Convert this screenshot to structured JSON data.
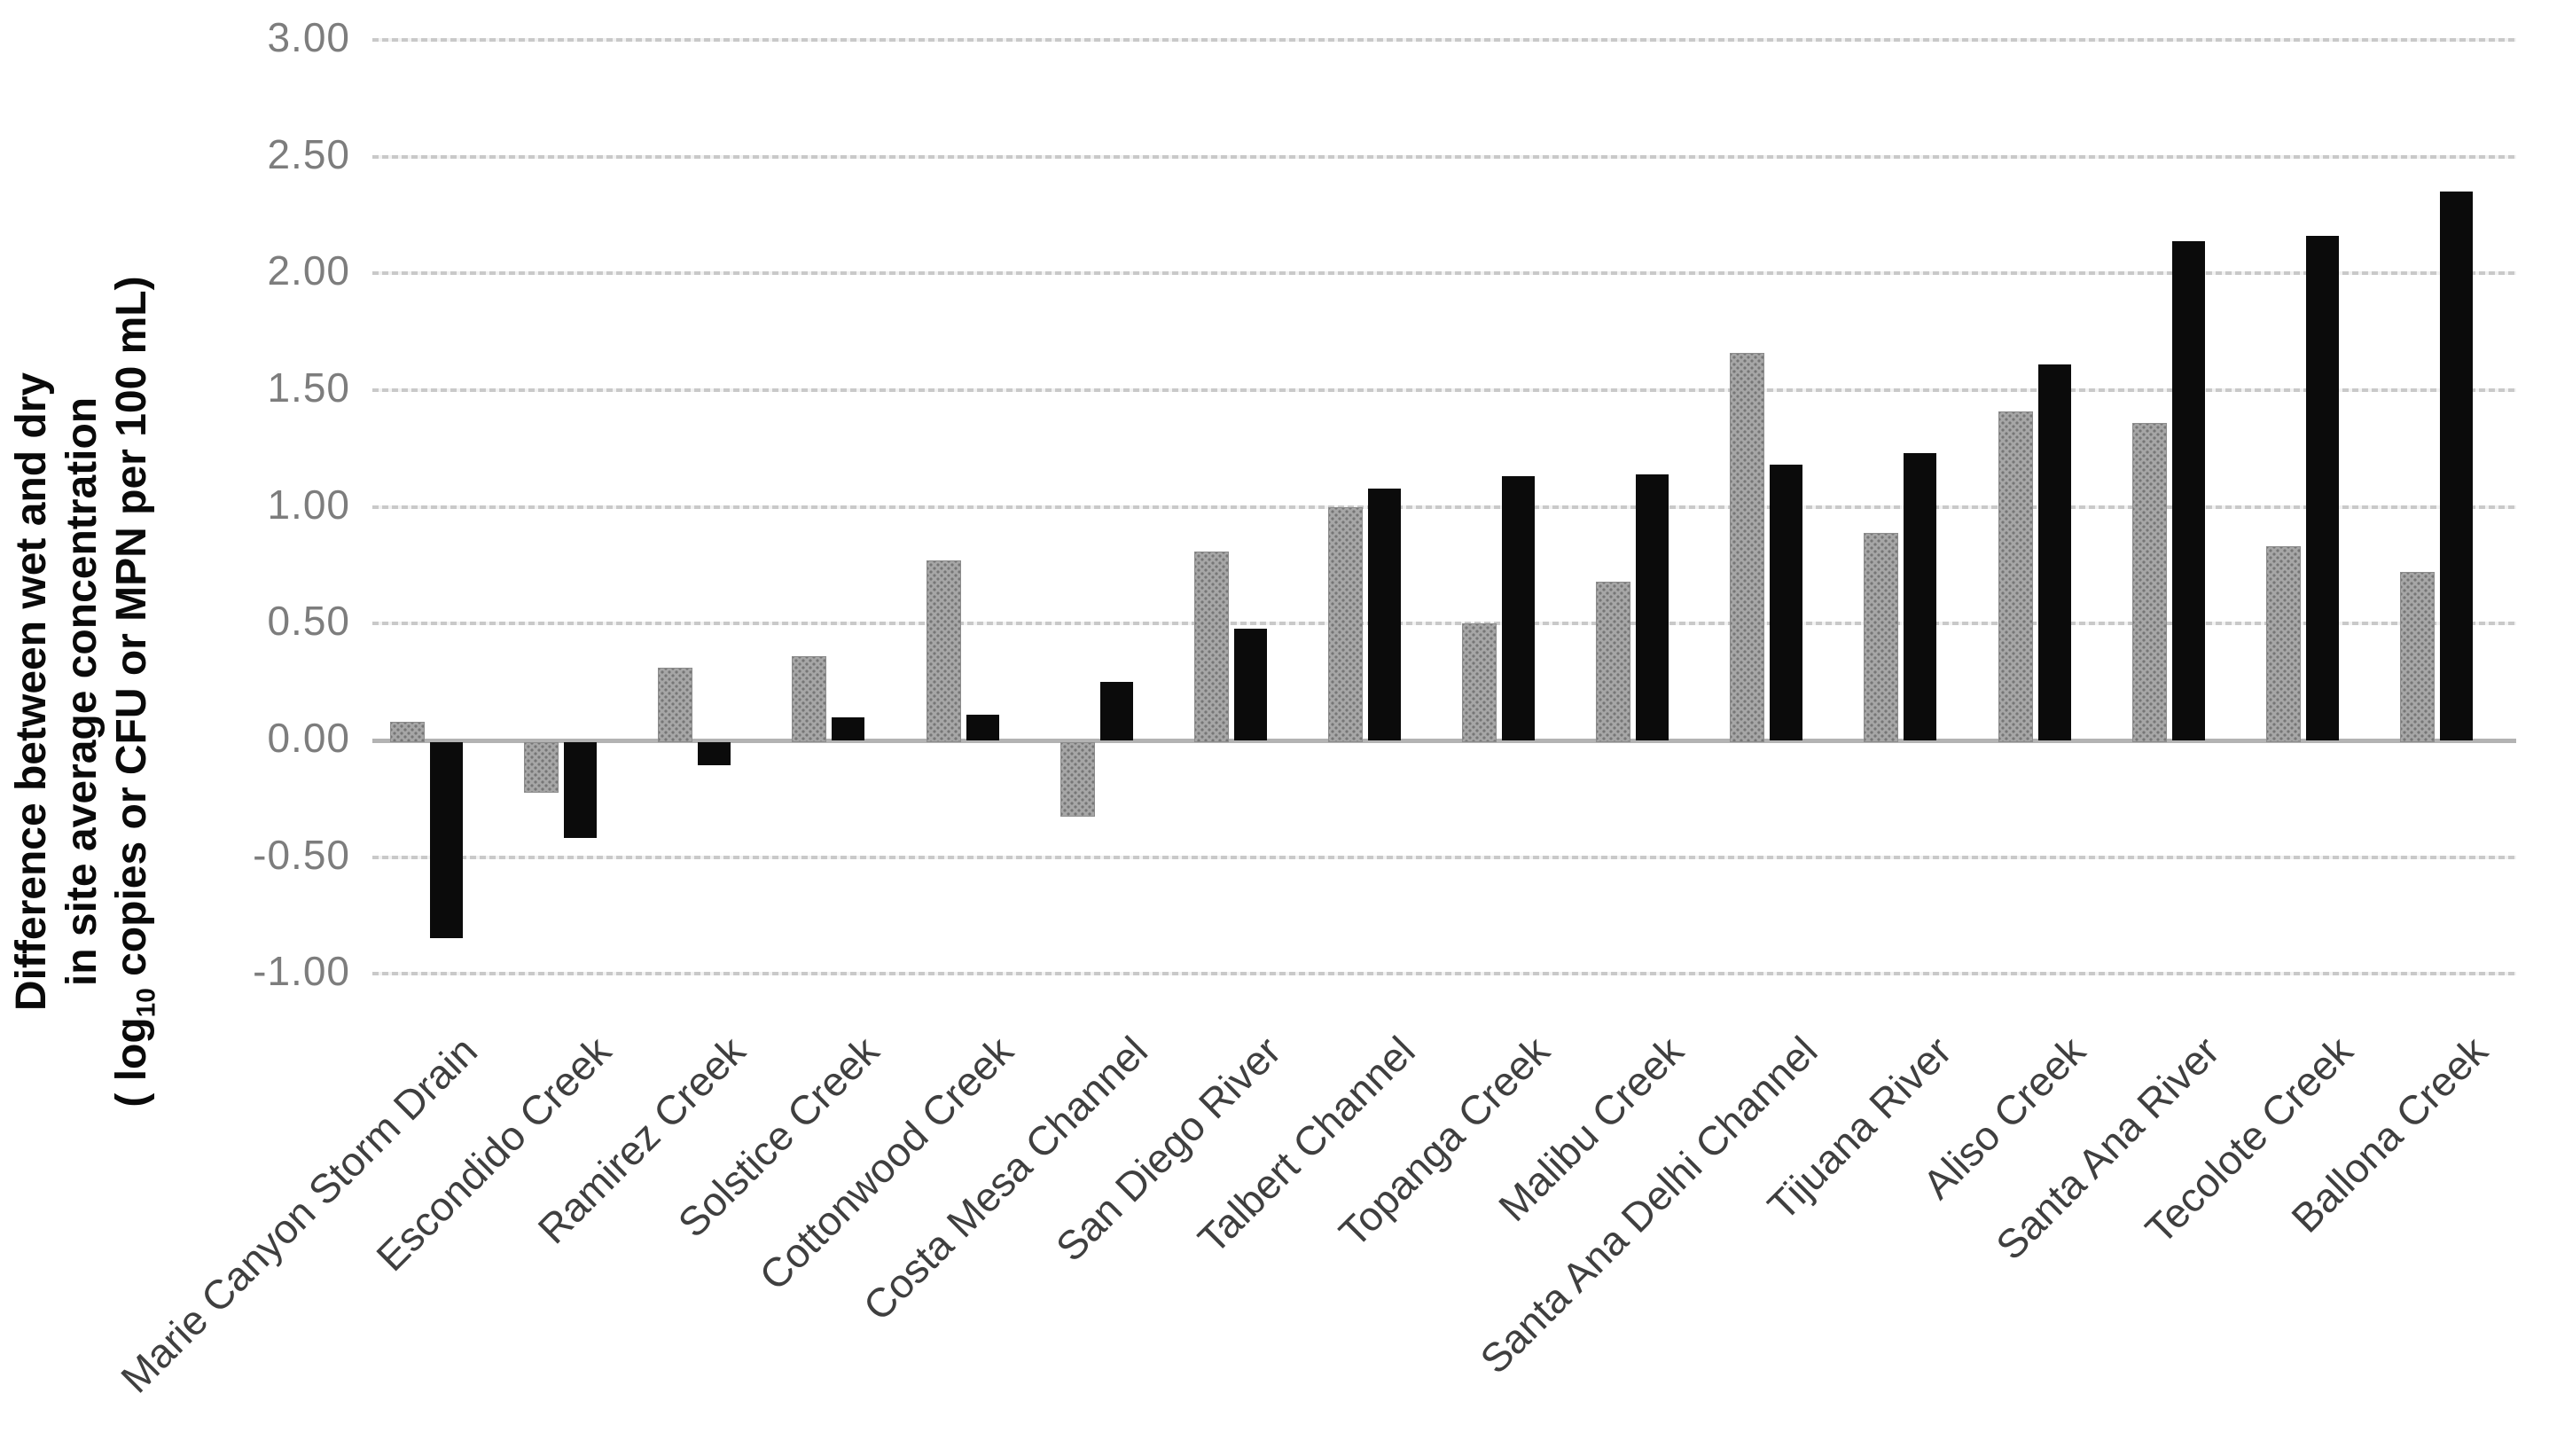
{
  "figure": {
    "background_color": "#ffffff",
    "legend": "none"
  },
  "y_axis_title": {
    "line1": "Difference between wet and dry",
    "line2": "in site average concentration",
    "line3_prefix": "( log",
    "line3_subscript": "10",
    "line3_suffix": " copies or CFU or MPN per 100 mL)"
  },
  "colors": {
    "gray_series": "#a6a6a6",
    "black_series": "#0b0b0b",
    "gridline": "#c9c9c9",
    "zero_axis_line": "#b3b3b3",
    "tick_label_text": "#7d7d7d",
    "category_label_text": "#3f3f3f",
    "axis_title_text": "#0a0a0a"
  },
  "chart_data": {
    "type": "bar",
    "title": "",
    "xlabel": "",
    "ylabel": "Difference between wet and dry in site average concentration ( log10 copies or CFU or MPN per 100 mL)",
    "ylim": [
      -1.0,
      3.0
    ],
    "ytick_step": 0.5,
    "ytick_labels": [
      "3.00",
      "2.50",
      "2.00",
      "1.50",
      "1.00",
      "0.50",
      "0.00",
      "-0.50",
      "-1.00"
    ],
    "grid": "horizontal, dotted light gray; solid line at 0.00",
    "legend_position": "none",
    "categories": [
      "Marie Canyon Storm Drain",
      "Escondido Creek",
      "Ramirez Creek",
      "Solstice Creek",
      "Cottonwood Creek",
      "Costa Mesa Channel",
      "San Diego River",
      "Talbert Channel",
      "Topanga Creek",
      "Malibu Creek",
      "Santa Ana Delhi Channel",
      "Tijuana River",
      "Aliso Creek",
      "Santa Ana River",
      "Tecolote Creek",
      "Ballona Creek"
    ],
    "series": [
      {
        "name": "gray",
        "color": "#a6a6a6",
        "values": [
          0.08,
          -0.21,
          0.31,
          0.36,
          0.77,
          -0.31,
          0.81,
          1.0,
          0.5,
          0.68,
          1.66,
          0.89,
          1.41,
          1.36,
          0.83,
          0.72
        ]
      },
      {
        "name": "black",
        "color": "#0b0b0b",
        "values": [
          -0.84,
          -0.41,
          -0.1,
          0.1,
          0.11,
          0.25,
          0.48,
          1.08,
          1.13,
          1.14,
          1.18,
          1.23,
          1.61,
          2.14,
          2.16,
          2.35
        ]
      }
    ]
  }
}
